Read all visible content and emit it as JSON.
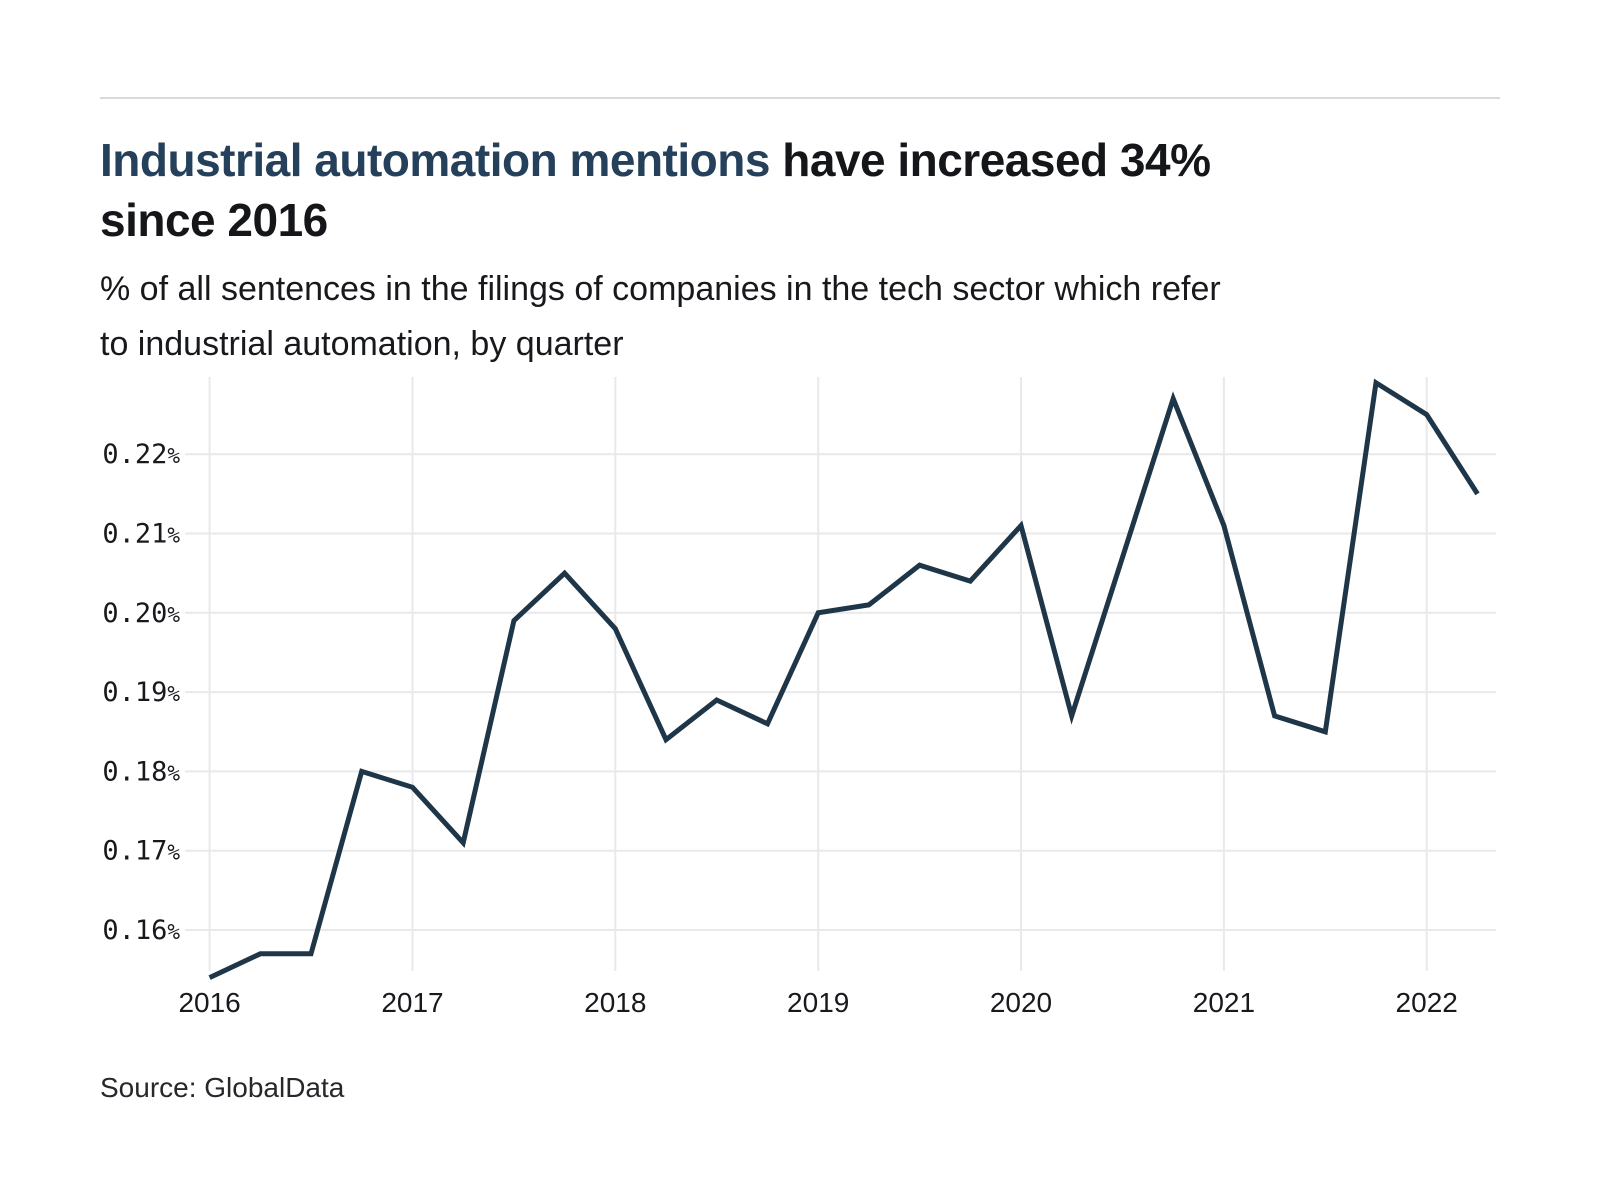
{
  "header": {
    "title_highlight": "Industrial automation mentions",
    "title_rest": " have increased 34%",
    "title_line2": "since 2016",
    "highlight_color": "#24405a",
    "subtitle_line1": "% of all sentences in the filings of companies in the tech sector which refer",
    "subtitle_line2": "to industrial automation, by quarter"
  },
  "footer": {
    "source": "Source: GlobalData"
  },
  "chart_data": {
    "type": "line",
    "title": "Industrial automation mentions have increased 34% since 2016",
    "subtitle": "% of all sentences in the filings of companies in the tech sector which refer to industrial automation, by quarter",
    "x": [
      "2016 Q1",
      "2016 Q2",
      "2016 Q3",
      "2016 Q4",
      "2017 Q1",
      "2017 Q2",
      "2017 Q3",
      "2017 Q4",
      "2018 Q1",
      "2018 Q2",
      "2018 Q3",
      "2018 Q4",
      "2019 Q1",
      "2019 Q2",
      "2019 Q3",
      "2019 Q4",
      "2020 Q1",
      "2020 Q2",
      "2020 Q3",
      "2020 Q4",
      "2021 Q1",
      "2021 Q2",
      "2021 Q3",
      "2021 Q4",
      "2022 Q1",
      "2022 Q2"
    ],
    "series": [
      {
        "name": "Industrial automation mentions (% of sentences)",
        "values": [
          0.154,
          0.157,
          0.157,
          0.18,
          0.178,
          0.171,
          0.199,
          0.205,
          0.198,
          0.184,
          0.189,
          0.186,
          0.2,
          0.201,
          0.206,
          0.204,
          0.211,
          0.187,
          0.207,
          0.227,
          0.211,
          0.187,
          0.185,
          0.229,
          0.225,
          0.215
        ]
      }
    ],
    "x_tick_labels": [
      "2016",
      "2017",
      "2018",
      "2019",
      "2020",
      "2021",
      "2022"
    ],
    "y_ticks": [
      0.16,
      0.17,
      0.18,
      0.19,
      0.2,
      0.21,
      0.22
    ],
    "y_tick_labels": [
      "0.16%",
      "0.17%",
      "0.18%",
      "0.19%",
      "0.20%",
      "0.21%",
      "0.22%"
    ],
    "ylim": [
      0.1535,
      0.2295
    ],
    "grid": true,
    "legend": false,
    "line_color": "#1e3648",
    "grid_color": "#e9e9eb",
    "tick_label_color": "#17191c"
  }
}
